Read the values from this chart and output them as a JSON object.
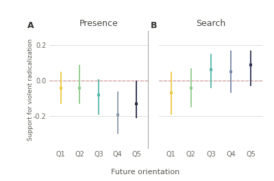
{
  "panel_A_title": "Presence",
  "panel_B_title": "Search",
  "panel_A_label": "A",
  "panel_B_label": "B",
  "xlabel": "Future orientation",
  "ylabel": "Support for violent radicalization",
  "categories": [
    "Q1",
    "Q2",
    "Q3",
    "Q4",
    "Q5"
  ],
  "presence": {
    "means": [
      -0.04,
      -0.04,
      -0.08,
      -0.19,
      -0.13
    ],
    "ci_low": [
      -0.13,
      -0.13,
      -0.19,
      -0.3,
      -0.21
    ],
    "ci_high": [
      0.05,
      0.09,
      0.01,
      -0.06,
      0.0
    ]
  },
  "search": {
    "means": [
      -0.07,
      -0.04,
      0.06,
      0.05,
      0.09
    ],
    "ci_low": [
      -0.19,
      -0.15,
      -0.04,
      -0.07,
      -0.03
    ],
    "ci_high": [
      0.05,
      0.07,
      0.15,
      0.17,
      0.17
    ]
  },
  "colors": [
    "#e8c840",
    "#8dcc8a",
    "#52b5a8",
    "#7a9ab8",
    "#2b2f55"
  ],
  "presence_colors": [
    "#e8c840",
    "#8dcc8a",
    "#52b5a8",
    "#8899aa",
    "#252840"
  ],
  "search_colors": [
    "#e8c840",
    "#8dcc8a",
    "#52b5a8",
    "#7788aa",
    "#2b2f50"
  ],
  "ref_line_y": 0.0,
  "ylim": [
    -0.38,
    0.28
  ],
  "yticks": [
    -0.2,
    0.0,
    0.2
  ],
  "background_color": "#ffffff",
  "grid_color": "#d8d8d0",
  "ref_line_color": "#cc8888",
  "spine_color": "#aaaaaa"
}
